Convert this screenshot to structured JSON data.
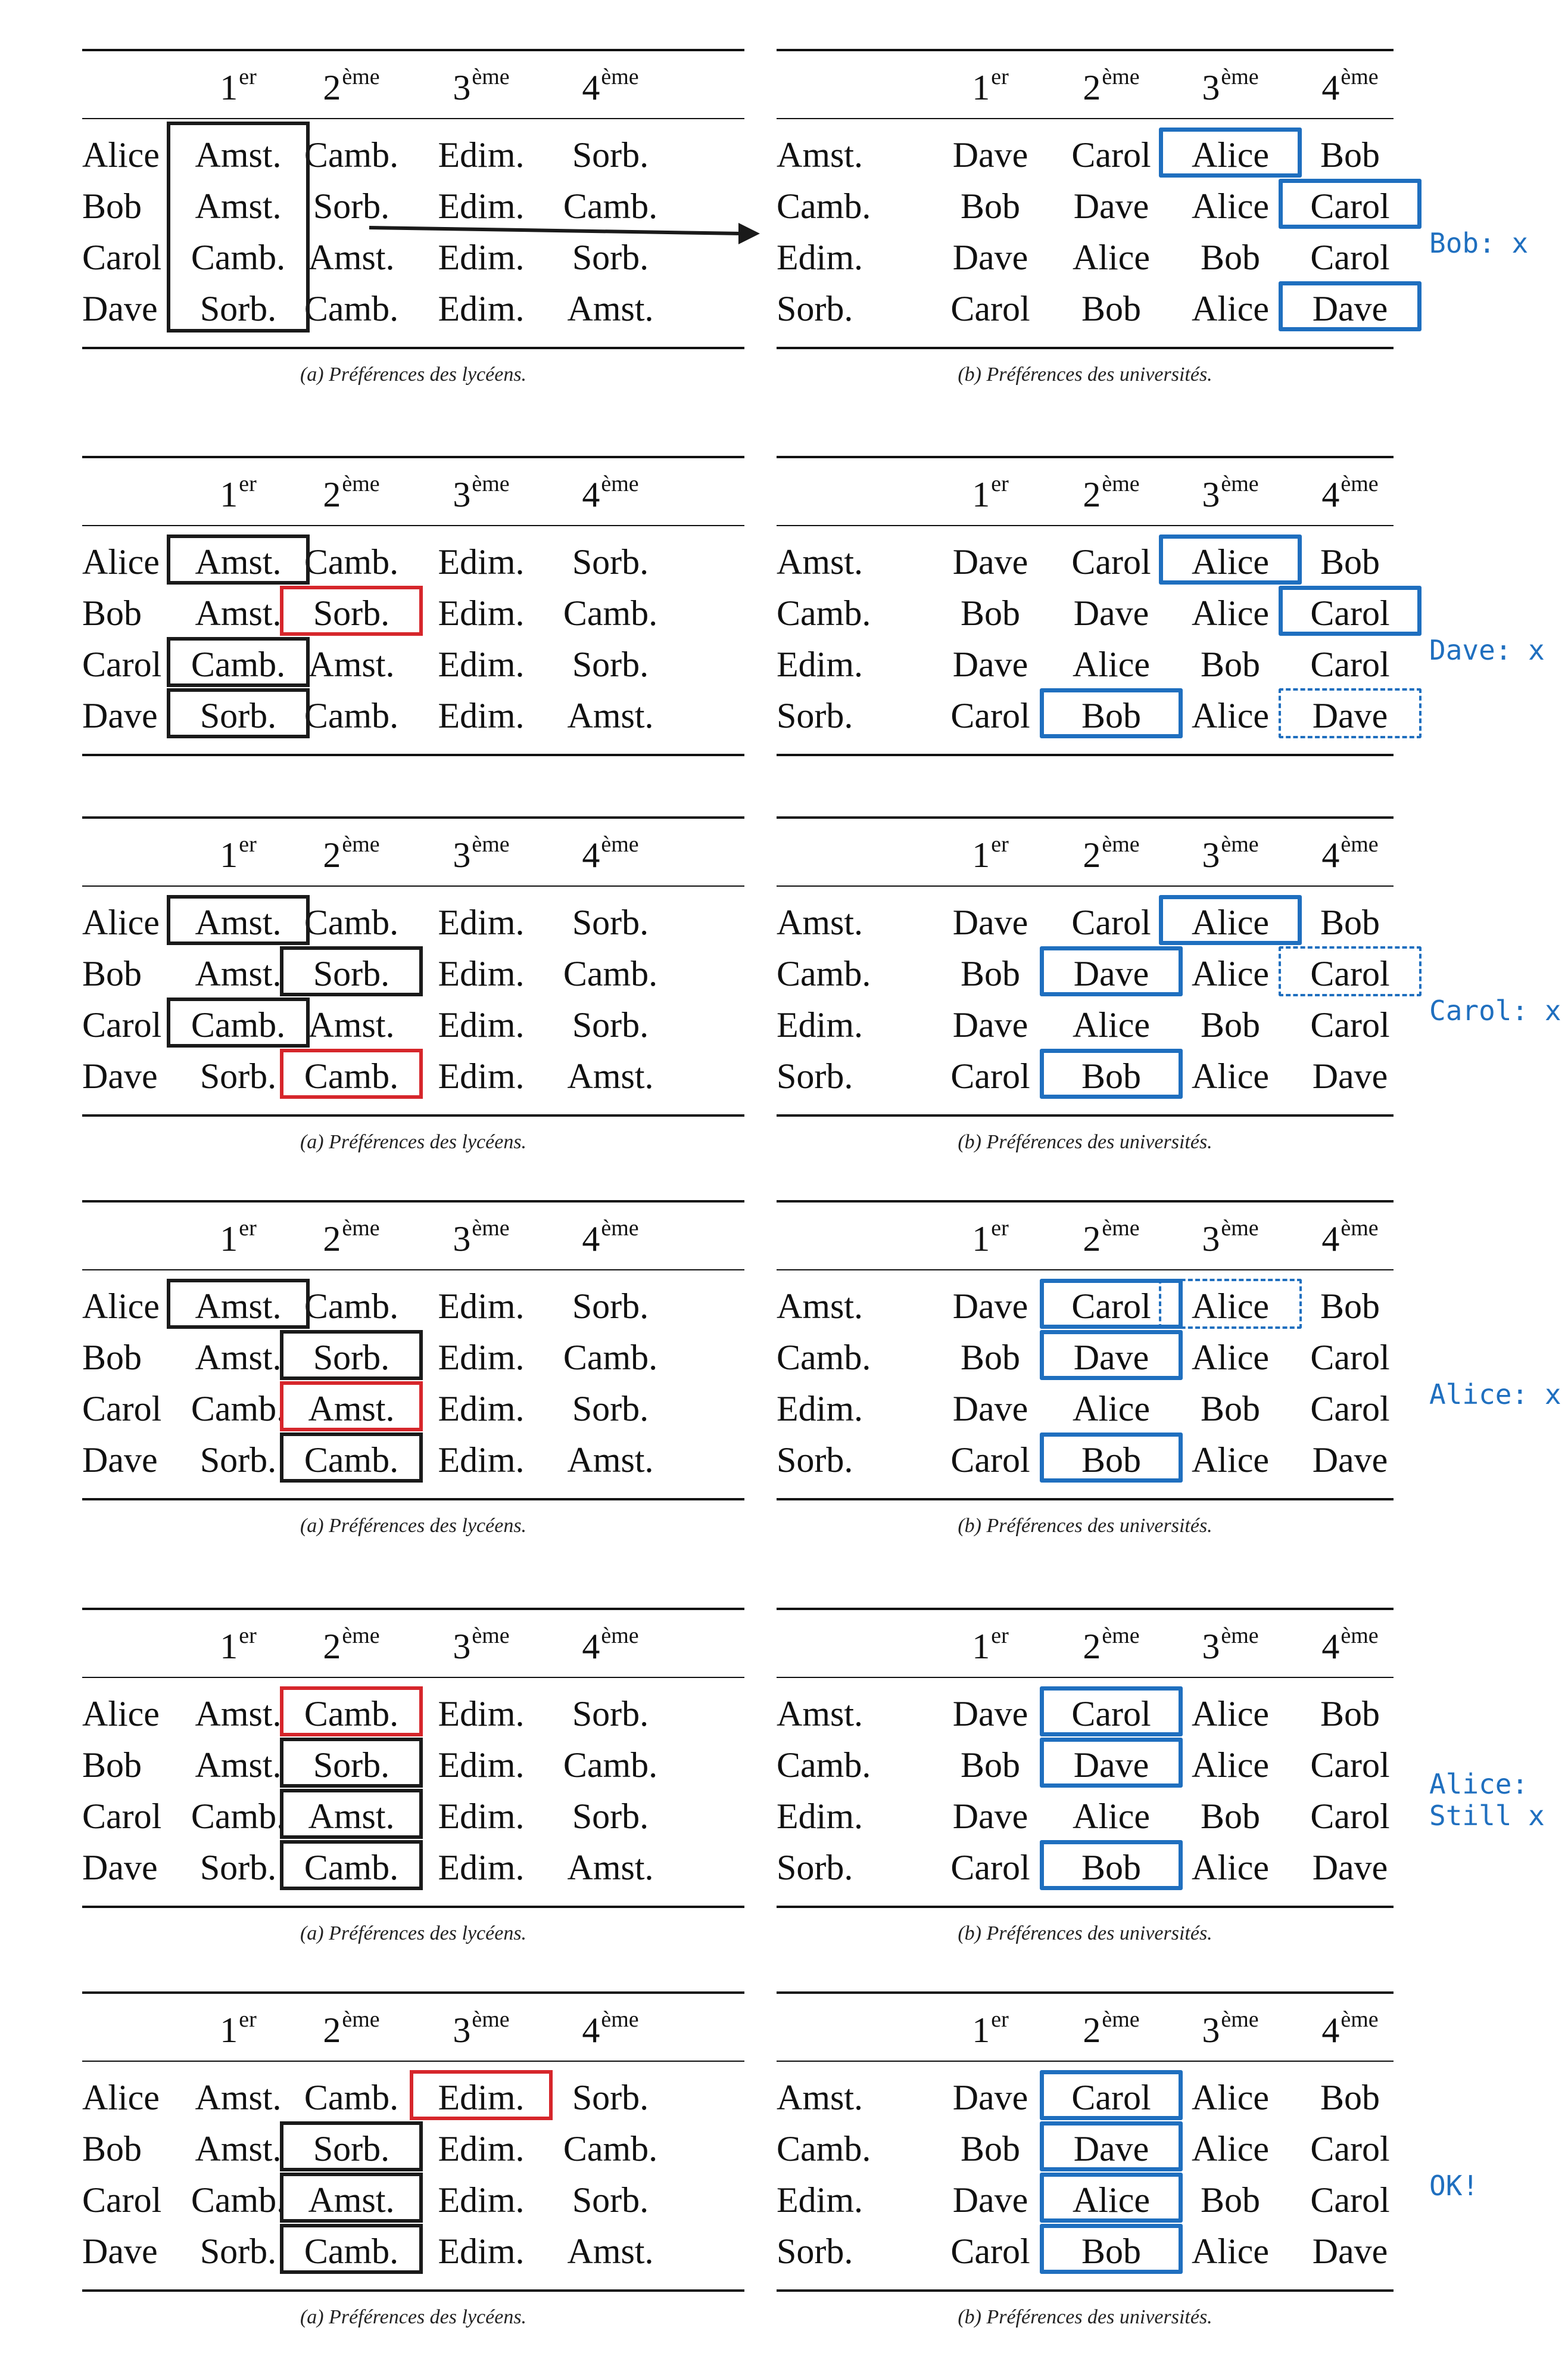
{
  "headers": {
    "ranks": [
      {
        "base": "1",
        "sup": "er"
      },
      {
        "base": "2",
        "sup": "ème"
      },
      {
        "base": "3",
        "sup": "ème"
      },
      {
        "base": "4",
        "sup": "ème"
      }
    ]
  },
  "students": {
    "rows": [
      {
        "label": "Alice",
        "prefs": [
          "Amst.",
          "Camb.",
          "Edim.",
          "Sorb."
        ]
      },
      {
        "label": "Bob",
        "prefs": [
          "Amst.",
          "Sorb.",
          "Edim.",
          "Camb."
        ]
      },
      {
        "label": "Carol",
        "prefs": [
          "Camb.",
          "Amst.",
          "Edim.",
          "Sorb."
        ]
      },
      {
        "label": "Dave",
        "prefs": [
          "Sorb.",
          "Camb.",
          "Edim.",
          "Amst."
        ]
      }
    ],
    "caption": "(a) Préférences des lycéens."
  },
  "universities": {
    "rows": [
      {
        "label": "Amst.",
        "prefs": [
          "Dave",
          "Carol",
          "Alice",
          "Bob"
        ]
      },
      {
        "label": "Camb.",
        "prefs": [
          "Bob",
          "Dave",
          "Alice",
          "Carol"
        ]
      },
      {
        "label": "Edim.",
        "prefs": [
          "Dave",
          "Alice",
          "Bob",
          "Carol"
        ]
      },
      {
        "label": "Sorb.",
        "prefs": [
          "Carol",
          "Bob",
          "Alice",
          "Dave"
        ]
      }
    ],
    "caption": "(b) Préférences des universités."
  },
  "steps": [
    {
      "note": "Bob: x",
      "student_boxes": [
        {
          "row": 0,
          "col": 0,
          "rows": 4,
          "style": "black"
        }
      ],
      "uni_boxes": [
        {
          "row": 0,
          "col": 2,
          "style": "blue"
        },
        {
          "row": 1,
          "col": 3,
          "style": "blue"
        },
        {
          "row": 3,
          "col": 3,
          "style": "blue"
        }
      ],
      "arrow": true
    },
    {
      "note": "Dave: x",
      "student_boxes": [
        {
          "row": 0,
          "col": 0,
          "style": "black"
        },
        {
          "row": 2,
          "col": 0,
          "style": "black"
        },
        {
          "row": 3,
          "col": 0,
          "style": "black"
        },
        {
          "row": 1,
          "col": 1,
          "style": "red"
        }
      ],
      "uni_boxes": [
        {
          "row": 0,
          "col": 2,
          "style": "blue"
        },
        {
          "row": 1,
          "col": 3,
          "style": "blue"
        },
        {
          "row": 3,
          "col": 1,
          "style": "blue"
        },
        {
          "row": 3,
          "col": 3,
          "style": "blue-dashed"
        }
      ]
    },
    {
      "note": "Carol: x",
      "student_boxes": [
        {
          "row": 0,
          "col": 0,
          "style": "black"
        },
        {
          "row": 1,
          "col": 1,
          "style": "black"
        },
        {
          "row": 2,
          "col": 0,
          "style": "black"
        },
        {
          "row": 3,
          "col": 1,
          "style": "red"
        }
      ],
      "uni_boxes": [
        {
          "row": 0,
          "col": 2,
          "style": "blue"
        },
        {
          "row": 1,
          "col": 1,
          "style": "blue"
        },
        {
          "row": 1,
          "col": 3,
          "style": "blue-dashed"
        },
        {
          "row": 3,
          "col": 1,
          "style": "blue"
        }
      ]
    },
    {
      "note": "Alice: x",
      "student_boxes": [
        {
          "row": 0,
          "col": 0,
          "style": "black"
        },
        {
          "row": 1,
          "col": 1,
          "style": "black"
        },
        {
          "row": 2,
          "col": 1,
          "style": "red"
        },
        {
          "row": 3,
          "col": 1,
          "style": "black"
        }
      ],
      "uni_boxes": [
        {
          "row": 0,
          "col": 1,
          "style": "blue"
        },
        {
          "row": 0,
          "col": 2,
          "style": "blue-dashed"
        },
        {
          "row": 1,
          "col": 1,
          "style": "blue"
        },
        {
          "row": 3,
          "col": 1,
          "style": "blue"
        }
      ]
    },
    {
      "note": "Alice:\nStill x",
      "student_boxes": [
        {
          "row": 0,
          "col": 1,
          "style": "red"
        },
        {
          "row": 1,
          "col": 1,
          "style": "black"
        },
        {
          "row": 2,
          "col": 1,
          "style": "black"
        },
        {
          "row": 3,
          "col": 1,
          "style": "black"
        }
      ],
      "uni_boxes": [
        {
          "row": 0,
          "col": 1,
          "style": "blue"
        },
        {
          "row": 1,
          "col": 1,
          "style": "blue"
        },
        {
          "row": 3,
          "col": 1,
          "style": "blue"
        }
      ]
    },
    {
      "note": "OK!",
      "student_boxes": [
        {
          "row": 0,
          "col": 2,
          "style": "red"
        },
        {
          "row": 1,
          "col": 1,
          "style": "black"
        },
        {
          "row": 2,
          "col": 1,
          "style": "black"
        },
        {
          "row": 3,
          "col": 1,
          "style": "black"
        }
      ],
      "uni_boxes": [
        {
          "row": 0,
          "col": 1,
          "style": "blue"
        },
        {
          "row": 1,
          "col": 1,
          "style": "blue"
        },
        {
          "row": 2,
          "col": 1,
          "style": "blue"
        },
        {
          "row": 3,
          "col": 1,
          "style": "blue"
        }
      ]
    }
  ]
}
